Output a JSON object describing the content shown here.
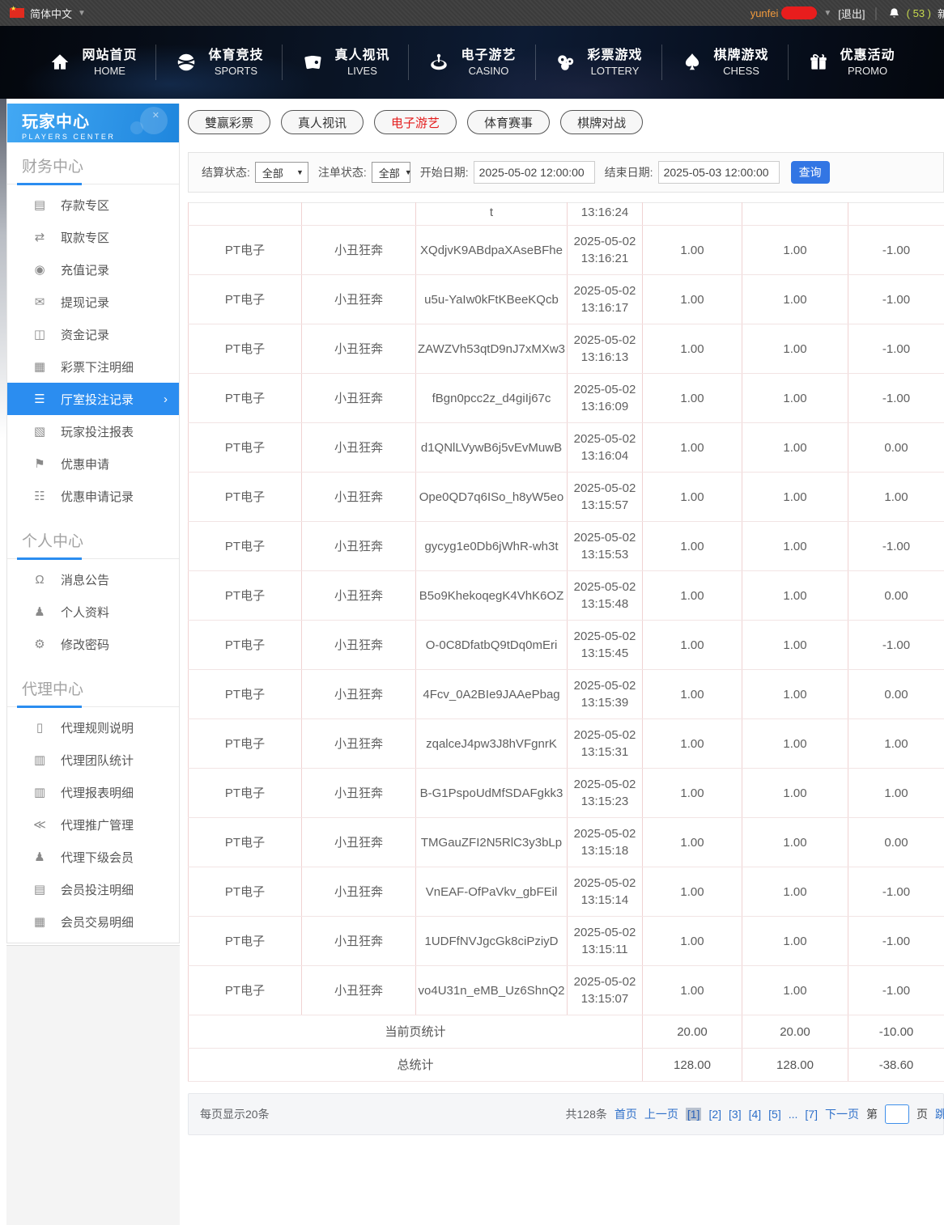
{
  "topbar": {
    "language": "简体中文",
    "username": "yunfei",
    "logout": "[退出]",
    "notice_count": "( 53 )",
    "notice_suffix": "新"
  },
  "nav": {
    "items": [
      {
        "zh": "网站首页",
        "en": "HOME",
        "icon": "home-icon"
      },
      {
        "zh": "体育竞技",
        "en": "SPORTS",
        "icon": "sports-ball-icon"
      },
      {
        "zh": "真人视讯",
        "en": "LIVES",
        "icon": "cards-icon"
      },
      {
        "zh": "电子游艺",
        "en": "CASINO",
        "icon": "roulette-icon"
      },
      {
        "zh": "彩票游戏",
        "en": "LOTTERY",
        "icon": "lottery-balls-icon"
      },
      {
        "zh": "棋牌游戏",
        "en": "CHESS",
        "icon": "spade-icon"
      },
      {
        "zh": "优惠活动",
        "en": "PROMO",
        "icon": "gift-icon"
      }
    ]
  },
  "sidebar": {
    "title": "玩家中心",
    "subtitle": "PLAYERS CENTER",
    "sections": [
      {
        "label": "财务中心",
        "items": [
          {
            "label": "存款专区",
            "icon": "deposit-icon",
            "active": false
          },
          {
            "label": "取款专区",
            "icon": "withdraw-icon",
            "active": false
          },
          {
            "label": "充值记录",
            "icon": "recharge-record-icon",
            "active": false
          },
          {
            "label": "提现记录",
            "icon": "withdraw-record-icon",
            "active": false
          },
          {
            "label": "资金记录",
            "icon": "funds-record-icon",
            "active": false
          },
          {
            "label": "彩票下注明细",
            "icon": "lottery-detail-icon",
            "active": false
          },
          {
            "label": "厅室投注记录",
            "icon": "hall-bet-record-icon",
            "active": true
          },
          {
            "label": "玩家投注报表",
            "icon": "player-report-icon",
            "active": false
          },
          {
            "label": "优惠申请",
            "icon": "promo-apply-icon",
            "active": false
          },
          {
            "label": "优惠申请记录",
            "icon": "promo-record-icon",
            "active": false
          }
        ]
      },
      {
        "label": "个人中心",
        "items": [
          {
            "label": "消息公告",
            "icon": "notice-bell-icon",
            "active": false
          },
          {
            "label": "个人资料",
            "icon": "profile-icon",
            "active": false
          },
          {
            "label": "修改密码",
            "icon": "password-gear-icon",
            "active": false
          }
        ]
      },
      {
        "label": "代理中心",
        "items": [
          {
            "label": "代理规则说明",
            "icon": "agent-rules-icon",
            "active": false
          },
          {
            "label": "代理团队统计",
            "icon": "agent-team-icon",
            "active": false
          },
          {
            "label": "代理报表明细",
            "icon": "agent-report-icon",
            "active": false
          },
          {
            "label": "代理推广管理",
            "icon": "agent-share-icon",
            "active": false
          },
          {
            "label": "代理下级会员",
            "icon": "agent-members-icon",
            "active": false
          },
          {
            "label": "会员投注明细",
            "icon": "member-bet-icon",
            "active": false
          },
          {
            "label": "会员交易明细",
            "icon": "member-trade-icon",
            "active": false
          }
        ]
      }
    ]
  },
  "tabs": [
    {
      "label": "雙赢彩票",
      "active": false
    },
    {
      "label": "真人视讯",
      "active": false
    },
    {
      "label": "电子游艺",
      "active": true
    },
    {
      "label": "体育赛事",
      "active": false
    },
    {
      "label": "棋牌对战",
      "active": false
    }
  ],
  "filters": {
    "settle_label": "结算状态:",
    "settle_value": "全部",
    "order_label": "注单状态:",
    "order_value": "全部",
    "start_label": "开始日期:",
    "start_value": "2025-05-02 12:00:00",
    "end_label": "结束日期:",
    "end_value": "2025-05-03 12:00:00",
    "search_label": "查询"
  },
  "table": {
    "partial_row": {
      "bet_id_tail": "t",
      "time_tail": "13:16:24"
    },
    "rows": [
      {
        "provider": "PT电子",
        "game": "小丑狂奔",
        "bet_id": "XQdjvK9ABdpaXAseBFhe",
        "time": "2025-05-02 13:16:21",
        "bet": "1.00",
        "valid": "1.00",
        "winloss": "-1.00"
      },
      {
        "provider": "PT电子",
        "game": "小丑狂奔",
        "bet_id": "u5u-YaIw0kFtKBeeKQcb",
        "time": "2025-05-02 13:16:17",
        "bet": "1.00",
        "valid": "1.00",
        "winloss": "-1.00"
      },
      {
        "provider": "PT电子",
        "game": "小丑狂奔",
        "bet_id": "ZAWZVh53qtD9nJ7xMXw3",
        "time": "2025-05-02 13:16:13",
        "bet": "1.00",
        "valid": "1.00",
        "winloss": "-1.00"
      },
      {
        "provider": "PT电子",
        "game": "小丑狂奔",
        "bet_id": "fBgn0pcc2z_d4giIj67c",
        "time": "2025-05-02 13:16:09",
        "bet": "1.00",
        "valid": "1.00",
        "winloss": "-1.00"
      },
      {
        "provider": "PT电子",
        "game": "小丑狂奔",
        "bet_id": "d1QNlLVywB6j5vEvMuwB",
        "time": "2025-05-02 13:16:04",
        "bet": "1.00",
        "valid": "1.00",
        "winloss": "0.00"
      },
      {
        "provider": "PT电子",
        "game": "小丑狂奔",
        "bet_id": "Ope0QD7q6ISo_h8yW5eo",
        "time": "2025-05-02 13:15:57",
        "bet": "1.00",
        "valid": "1.00",
        "winloss": "1.00"
      },
      {
        "provider": "PT电子",
        "game": "小丑狂奔",
        "bet_id": "gycyg1e0Db6jWhR-wh3t",
        "time": "2025-05-02 13:15:53",
        "bet": "1.00",
        "valid": "1.00",
        "winloss": "-1.00"
      },
      {
        "provider": "PT电子",
        "game": "小丑狂奔",
        "bet_id": "B5o9KhekoqegK4VhK6OZ",
        "time": "2025-05-02 13:15:48",
        "bet": "1.00",
        "valid": "1.00",
        "winloss": "0.00"
      },
      {
        "provider": "PT电子",
        "game": "小丑狂奔",
        "bet_id": "O-0C8DfatbQ9tDq0mEri",
        "time": "2025-05-02 13:15:45",
        "bet": "1.00",
        "valid": "1.00",
        "winloss": "-1.00"
      },
      {
        "provider": "PT电子",
        "game": "小丑狂奔",
        "bet_id": "4Fcv_0A2BIe9JAAePbag",
        "time": "2025-05-02 13:15:39",
        "bet": "1.00",
        "valid": "1.00",
        "winloss": "0.00"
      },
      {
        "provider": "PT电子",
        "game": "小丑狂奔",
        "bet_id": "zqalceJ4pw3J8hVFgnrK",
        "time": "2025-05-02 13:15:31",
        "bet": "1.00",
        "valid": "1.00",
        "winloss": "1.00"
      },
      {
        "provider": "PT电子",
        "game": "小丑狂奔",
        "bet_id": "B-G1PspoUdMfSDAFgkk3",
        "time": "2025-05-02 13:15:23",
        "bet": "1.00",
        "valid": "1.00",
        "winloss": "1.00"
      },
      {
        "provider": "PT电子",
        "game": "小丑狂奔",
        "bet_id": "TMGauZFI2N5RlC3y3bLp",
        "time": "2025-05-02 13:15:18",
        "bet": "1.00",
        "valid": "1.00",
        "winloss": "0.00"
      },
      {
        "provider": "PT电子",
        "game": "小丑狂奔",
        "bet_id": "VnEAF-OfPaVkv_gbFEil",
        "time": "2025-05-02 13:15:14",
        "bet": "1.00",
        "valid": "1.00",
        "winloss": "-1.00"
      },
      {
        "provider": "PT电子",
        "game": "小丑狂奔",
        "bet_id": "1UDFfNVJgcGk8ciPziyD",
        "time": "2025-05-02 13:15:11",
        "bet": "1.00",
        "valid": "1.00",
        "winloss": "-1.00"
      },
      {
        "provider": "PT电子",
        "game": "小丑狂奔",
        "bet_id": "vo4U31n_eMB_Uz6ShnQ2",
        "time": "2025-05-02 13:15:07",
        "bet": "1.00",
        "valid": "1.00",
        "winloss": "-1.00"
      }
    ],
    "page_summary": {
      "label": "当前页统计",
      "bet": "20.00",
      "valid": "20.00",
      "winloss": "-10.00"
    },
    "total_summary": {
      "label": "总统计",
      "bet": "128.00",
      "valid": "128.00",
      "winloss": "-38.60"
    }
  },
  "pagination": {
    "per_page": "每页显示20条",
    "total": "共128条",
    "first": "首页",
    "prev": "上一页",
    "pages": [
      "1",
      "2",
      "3",
      "4",
      "5"
    ],
    "current": "1",
    "ellipsis": "...",
    "last_page": "7",
    "next": "下一页",
    "jump_prefix": "第",
    "jump_suffix": "页",
    "jump_label": "跳转"
  },
  "colors": {
    "accent_blue": "#2b8df0",
    "active_tab_red": "#e41e1e",
    "link_blue": "#2d6fc9",
    "button_blue": "#3276e4",
    "notice_green": "#c8da4d",
    "username_orange": "#f19a3d",
    "table_border_pink": "#f0d2d2"
  }
}
